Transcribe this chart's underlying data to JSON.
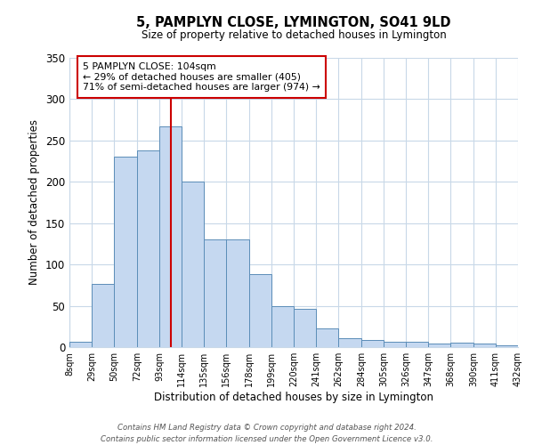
{
  "title": "5, PAMPLYN CLOSE, LYMINGTON, SO41 9LD",
  "subtitle": "Size of property relative to detached houses in Lymington",
  "xlabel": "Distribution of detached houses by size in Lymington",
  "ylabel": "Number of detached properties",
  "bin_labels": [
    "8sqm",
    "29sqm",
    "50sqm",
    "72sqm",
    "93sqm",
    "114sqm",
    "135sqm",
    "156sqm",
    "178sqm",
    "199sqm",
    "220sqm",
    "241sqm",
    "262sqm",
    "284sqm",
    "305sqm",
    "326sqm",
    "347sqm",
    "368sqm",
    "390sqm",
    "411sqm",
    "432sqm"
  ],
  "bar_values": [
    6,
    77,
    230,
    238,
    267,
    200,
    130,
    130,
    88,
    50,
    46,
    23,
    11,
    9,
    7,
    7,
    4,
    5,
    4,
    2
  ],
  "bar_color": "#c5d8f0",
  "bar_edge_color": "#5b8db8",
  "vline_x": 104,
  "vline_color": "#cc0000",
  "ylim": [
    0,
    350
  ],
  "yticks": [
    0,
    50,
    100,
    150,
    200,
    250,
    300,
    350
  ],
  "annotation_title": "5 PAMPLYN CLOSE: 104sqm",
  "annotation_line1": "← 29% of detached houses are smaller (405)",
  "annotation_line2": "71% of semi-detached houses are larger (974) →",
  "annotation_box_color": "#ffffff",
  "annotation_box_edge": "#cc0000",
  "bin_edges": [
    8,
    29,
    50,
    72,
    93,
    114,
    135,
    156,
    178,
    199,
    220,
    241,
    262,
    284,
    305,
    326,
    347,
    368,
    390,
    411,
    432
  ],
  "footer1": "Contains HM Land Registry data © Crown copyright and database right 2024.",
  "footer2": "Contains public sector information licensed under the Open Government Licence v3.0."
}
